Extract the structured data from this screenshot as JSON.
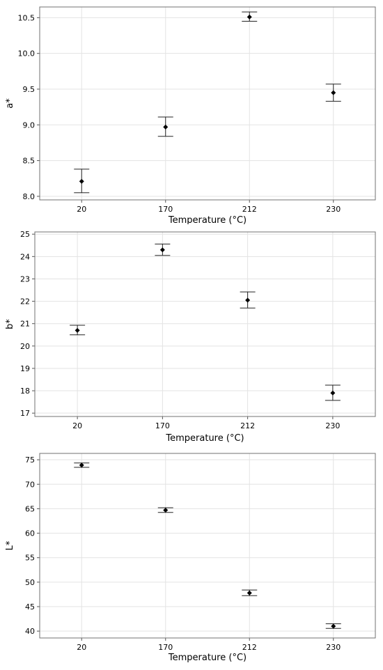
{
  "chart_data": [
    {
      "type": "scatter",
      "title": "",
      "xlabel": "Temperature (°C)",
      "ylabel": "a*",
      "categories": [
        "20",
        "170",
        "212",
        "230"
      ],
      "values": [
        8.21,
        8.97,
        10.51,
        9.45
      ],
      "error_low": [
        8.05,
        8.84,
        10.45,
        9.33
      ],
      "error_high": [
        8.38,
        9.11,
        10.58,
        9.57
      ],
      "yticks": [
        "8.0",
        "8.5",
        "9.0",
        "9.5",
        "10.0",
        "10.5"
      ],
      "ylim": [
        7.95,
        10.65
      ],
      "grid": true
    },
    {
      "type": "scatter",
      "title": "",
      "xlabel": "Temperature (°C)",
      "ylabel": "b*",
      "categories": [
        "20",
        "170",
        "212",
        "230"
      ],
      "values": [
        20.7,
        24.3,
        22.05,
        17.9
      ],
      "error_low": [
        20.5,
        24.05,
        21.7,
        17.57
      ],
      "error_high": [
        20.93,
        24.56,
        22.42,
        18.25
      ],
      "yticks": [
        "17",
        "18",
        "19",
        "20",
        "21",
        "22",
        "23",
        "24",
        "25"
      ],
      "ylim": [
        16.85,
        25.1
      ],
      "grid": true
    },
    {
      "type": "scatter",
      "title": "",
      "xlabel": "Temperature (°C)",
      "ylabel": "L*",
      "categories": [
        "20",
        "170",
        "212",
        "230"
      ],
      "values": [
        73.9,
        64.7,
        47.8,
        41.0
      ],
      "error_low": [
        73.45,
        64.25,
        47.25,
        40.55
      ],
      "error_high": [
        74.35,
        65.2,
        48.4,
        41.5
      ],
      "yticks": [
        "40",
        "45",
        "50",
        "55",
        "60",
        "65",
        "70",
        "75"
      ],
      "ylim": [
        38.6,
        76.3
      ],
      "grid": true
    }
  ]
}
